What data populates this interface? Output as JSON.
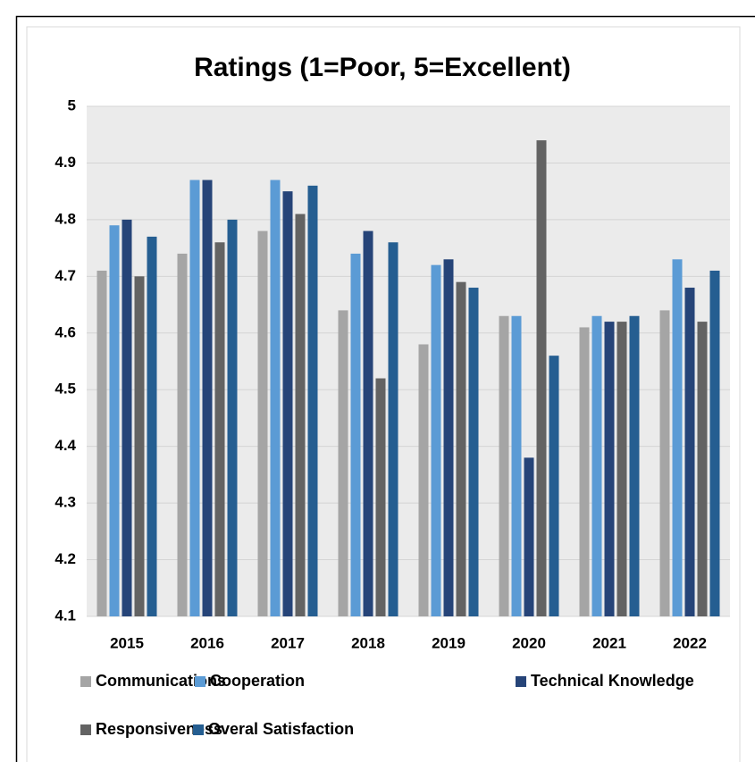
{
  "chart_data": {
    "type": "bar",
    "title": "Ratings (1=Poor, 5=Excellent)",
    "categories": [
      "2015",
      "2016",
      "2017",
      "2018",
      "2019",
      "2020",
      "2021",
      "2022"
    ],
    "series": [
      {
        "name": "Communications",
        "color": "#a5a5a5",
        "values": [
          4.71,
          4.74,
          4.78,
          4.64,
          4.58,
          4.63,
          4.61,
          4.64
        ]
      },
      {
        "name": "Cooperation",
        "color": "#5b9bd5",
        "values": [
          4.79,
          4.87,
          4.87,
          4.74,
          4.72,
          4.63,
          4.63,
          4.73
        ]
      },
      {
        "name": "Technical Knowledge",
        "color": "#264478",
        "values": [
          4.8,
          4.87,
          4.85,
          4.78,
          4.73,
          4.38,
          4.62,
          4.68
        ]
      },
      {
        "name": "Responsiveness",
        "color": "#636363",
        "values": [
          4.7,
          4.76,
          4.81,
          4.52,
          4.69,
          4.94,
          4.62,
          4.62
        ]
      },
      {
        "name": "Overal Satisfaction",
        "color": "#255e91",
        "values": [
          4.77,
          4.8,
          4.86,
          4.76,
          4.68,
          4.56,
          4.63,
          4.71
        ]
      }
    ],
    "ylim": [
      4.1,
      5
    ],
    "yticks": [
      4.1,
      4.2,
      4.3,
      4.4,
      4.5,
      4.6,
      4.7,
      4.8,
      4.9,
      5
    ],
    "grid": true
  }
}
